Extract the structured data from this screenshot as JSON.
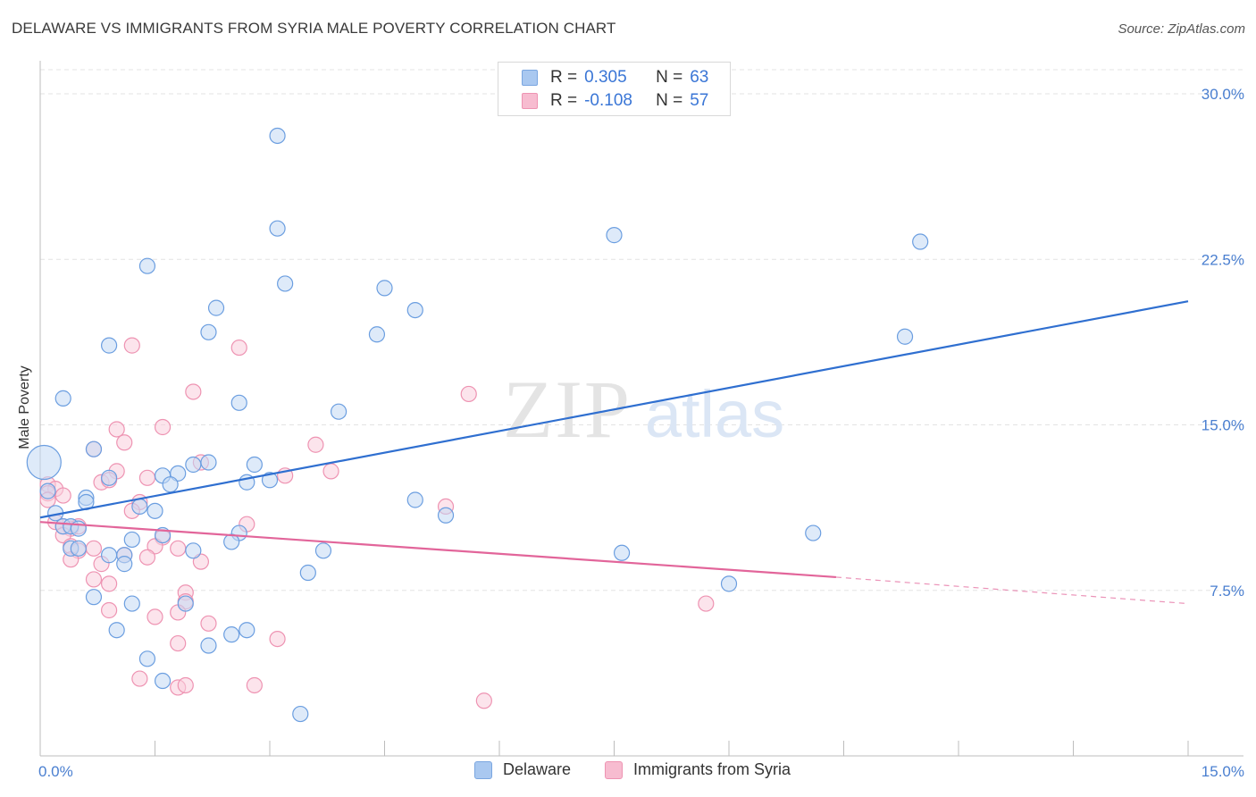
{
  "title": "DELAWARE VS IMMIGRANTS FROM SYRIA MALE POVERTY CORRELATION CHART",
  "source": "Source: ZipAtlas.com",
  "watermark": {
    "zip": "ZIP",
    "atlas": "atlas"
  },
  "legend": {
    "rows": [
      {
        "r_label": "R =",
        "r_value": "0.305",
        "n_label": "N =",
        "n_value": "63",
        "color": "#a9c8f0",
        "border": "#7aa6e0"
      },
      {
        "r_label": "R =",
        "r_value": "-0.108",
        "n_label": "N =",
        "n_value": "57",
        "color": "#f7bcd0",
        "border": "#ee93b2"
      }
    ]
  },
  "bottom_legend": [
    "Delaware",
    "Immigrants from Syria"
  ],
  "chart_data": {
    "type": "scatter",
    "title": "DELAWARE VS IMMIGRANTS FROM SYRIA MALE POVERTY CORRELATION CHART",
    "xlabel": "",
    "ylabel": "Male Poverty",
    "xlim": [
      0,
      15
    ],
    "ylim": [
      0,
      31.5
    ],
    "x_tick_labels": [
      "0.0%",
      "15.0%"
    ],
    "y_ticks": [
      7.5,
      15.0,
      22.5,
      30.0
    ],
    "y_tick_labels": [
      "7.5%",
      "15.0%",
      "22.5%",
      "30.0%"
    ],
    "grid": "horizontal dashed",
    "legend_position": "top-center",
    "series": [
      {
        "name": "Delaware",
        "color": "#6b9ee0",
        "fill": "#c3d8f4",
        "trend": {
          "x": [
            0,
            15
          ],
          "y": [
            10.8,
            20.6
          ],
          "color": "#2f6fd0"
        },
        "points": [
          [
            3.1,
            28.1
          ],
          [
            3.1,
            23.9
          ],
          [
            7.5,
            23.6
          ],
          [
            11.5,
            23.3
          ],
          [
            1.4,
            22.2
          ],
          [
            3.2,
            21.4
          ],
          [
            4.5,
            21.2
          ],
          [
            2.3,
            20.3
          ],
          [
            4.9,
            20.2
          ],
          [
            2.2,
            19.2
          ],
          [
            4.4,
            19.1
          ],
          [
            11.3,
            19.0
          ],
          [
            0.9,
            18.6
          ],
          [
            0.3,
            16.2
          ],
          [
            2.6,
            16.0
          ],
          [
            3.9,
            15.6
          ],
          [
            0.7,
            13.9
          ],
          [
            2.2,
            13.3
          ],
          [
            2.0,
            13.2
          ],
          [
            2.8,
            13.2
          ],
          [
            1.8,
            12.8
          ],
          [
            1.6,
            12.7
          ],
          [
            0.9,
            12.6
          ],
          [
            3.0,
            12.5
          ],
          [
            2.7,
            12.4
          ],
          [
            1.7,
            12.3
          ],
          [
            0.6,
            11.7
          ],
          [
            0.6,
            11.5
          ],
          [
            4.9,
            11.6
          ],
          [
            1.3,
            11.3
          ],
          [
            1.5,
            11.1
          ],
          [
            5.3,
            10.9
          ],
          [
            0.2,
            11.0
          ],
          [
            0.3,
            10.4
          ],
          [
            0.4,
            10.4
          ],
          [
            0.5,
            10.3
          ],
          [
            2.6,
            10.1
          ],
          [
            1.6,
            10.0
          ],
          [
            2.5,
            9.7
          ],
          [
            10.1,
            10.1
          ],
          [
            1.2,
            9.8
          ],
          [
            0.4,
            9.4
          ],
          [
            0.5,
            9.4
          ],
          [
            2.0,
            9.3
          ],
          [
            0.9,
            9.1
          ],
          [
            1.1,
            9.1
          ],
          [
            3.7,
            9.3
          ],
          [
            7.6,
            9.2
          ],
          [
            1.1,
            8.7
          ],
          [
            3.5,
            8.3
          ],
          [
            9.0,
            7.8
          ],
          [
            0.7,
            7.2
          ],
          [
            1.2,
            6.9
          ],
          [
            1.9,
            6.9
          ],
          [
            1.0,
            5.7
          ],
          [
            2.7,
            5.7
          ],
          [
            2.5,
            5.5
          ],
          [
            2.2,
            5.0
          ],
          [
            1.4,
            4.4
          ],
          [
            1.6,
            3.4
          ],
          [
            3.4,
            1.9
          ],
          [
            0.05,
            13.3
          ],
          [
            0.1,
            12.0
          ]
        ]
      },
      {
        "name": "Immigrants from Syria",
        "color": "#ee93b2",
        "fill": "#f9cddd",
        "trend": {
          "x": [
            0,
            10.4
          ],
          "y": [
            10.6,
            8.1
          ],
          "color": "#e2659a",
          "dashed_to": [
            15,
            6.9
          ]
        },
        "points": [
          [
            1.2,
            18.6
          ],
          [
            2.6,
            18.5
          ],
          [
            5.6,
            16.4
          ],
          [
            2.0,
            16.5
          ],
          [
            1.6,
            14.9
          ],
          [
            1.0,
            14.8
          ],
          [
            1.1,
            14.2
          ],
          [
            3.6,
            14.1
          ],
          [
            0.7,
            13.9
          ],
          [
            2.1,
            13.3
          ],
          [
            3.8,
            12.9
          ],
          [
            1.0,
            12.9
          ],
          [
            3.2,
            12.7
          ],
          [
            1.4,
            12.6
          ],
          [
            0.1,
            12.3
          ],
          [
            0.2,
            12.1
          ],
          [
            0.8,
            12.4
          ],
          [
            0.9,
            12.5
          ],
          [
            0.1,
            11.9
          ],
          [
            0.3,
            11.8
          ],
          [
            1.3,
            11.5
          ],
          [
            5.3,
            11.3
          ],
          [
            1.2,
            11.1
          ],
          [
            0.2,
            10.6
          ],
          [
            0.3,
            10.4
          ],
          [
            0.4,
            10.3
          ],
          [
            0.5,
            10.4
          ],
          [
            2.7,
            10.5
          ],
          [
            0.3,
            10.0
          ],
          [
            1.6,
            9.9
          ],
          [
            0.4,
            9.5
          ],
          [
            0.7,
            9.4
          ],
          [
            1.5,
            9.5
          ],
          [
            1.8,
            9.4
          ],
          [
            0.5,
            9.3
          ],
          [
            1.1,
            9.1
          ],
          [
            1.4,
            9.0
          ],
          [
            2.1,
            8.8
          ],
          [
            0.4,
            8.9
          ],
          [
            0.8,
            8.7
          ],
          [
            0.7,
            8.0
          ],
          [
            0.9,
            7.8
          ],
          [
            1.9,
            7.4
          ],
          [
            1.9,
            7.0
          ],
          [
            0.9,
            6.6
          ],
          [
            1.5,
            6.3
          ],
          [
            1.8,
            6.5
          ],
          [
            2.2,
            6.0
          ],
          [
            8.7,
            6.9
          ],
          [
            3.1,
            5.3
          ],
          [
            1.8,
            5.1
          ],
          [
            1.3,
            3.5
          ],
          [
            1.8,
            3.1
          ],
          [
            2.8,
            3.2
          ],
          [
            1.9,
            3.2
          ],
          [
            5.8,
            2.5
          ],
          [
            0.1,
            11.6
          ]
        ]
      }
    ]
  }
}
